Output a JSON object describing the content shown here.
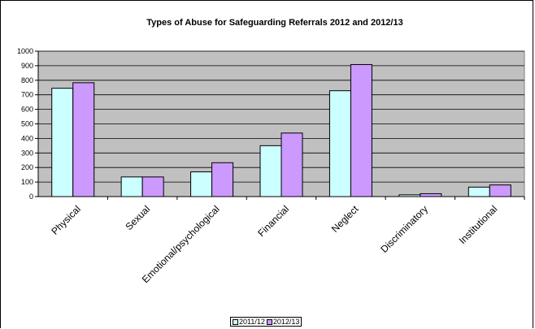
{
  "chart_data": {
    "type": "bar",
    "title": "Types of Abuse for Safeguarding Referrals 2012 and 2012/13",
    "xlabel": "",
    "ylabel": "",
    "ylim": [
      0,
      1000
    ],
    "yticks": [
      0,
      100,
      200,
      300,
      400,
      500,
      600,
      700,
      800,
      900,
      1000
    ],
    "grid": true,
    "legend_position": "bottom",
    "plot_background": "#C0C0C0",
    "categories": [
      "Physical",
      "Sexual",
      "Emotional/psychological",
      "Financial",
      "Neglect",
      "Discriminatory",
      "Institutional"
    ],
    "series": [
      {
        "name": "2011/12",
        "color": "#CCFFFF",
        "values": [
          745,
          135,
          170,
          350,
          728,
          12,
          65
        ]
      },
      {
        "name": "2012/13",
        "color": "#CC99FF",
        "values": [
          783,
          135,
          233,
          437,
          908,
          20,
          80
        ]
      }
    ]
  }
}
